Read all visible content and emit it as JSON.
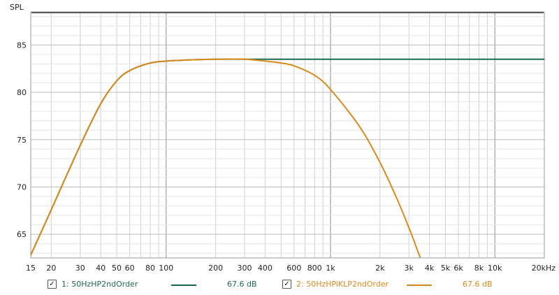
{
  "chart_data": {
    "type": "line",
    "ylabel": "SPL",
    "xscale": "log",
    "xlim": [
      15,
      20000
    ],
    "ylim": [
      62.5,
      88.5
    ],
    "x_ticks": [
      {
        "v": 15,
        "label": "15"
      },
      {
        "v": 20,
        "label": "20"
      },
      {
        "v": 30,
        "label": "30"
      },
      {
        "v": 40,
        "label": "40"
      },
      {
        "v": 50,
        "label": "50"
      },
      {
        "v": 60,
        "label": "60"
      },
      {
        "v": 80,
        "label": "80"
      },
      {
        "v": 100,
        "label": "100"
      },
      {
        "v": 200,
        "label": "200"
      },
      {
        "v": 300,
        "label": "300"
      },
      {
        "v": 400,
        "label": "400"
      },
      {
        "v": 600,
        "label": "600"
      },
      {
        "v": 800,
        "label": "800"
      },
      {
        "v": 1000,
        "label": "1k"
      },
      {
        "v": 2000,
        "label": "2k"
      },
      {
        "v": 3000,
        "label": "3k"
      },
      {
        "v": 4000,
        "label": "4k"
      },
      {
        "v": 5000,
        "label": "5k"
      },
      {
        "v": 6000,
        "label": "6k"
      },
      {
        "v": 8000,
        "label": "8k"
      },
      {
        "v": 10000,
        "label": "10k"
      },
      {
        "v": 20000,
        "label": "20kHz"
      }
    ],
    "y_ticks": [
      {
        "v": 65,
        "label": "65"
      },
      {
        "v": 70,
        "label": "70"
      },
      {
        "v": 75,
        "label": "75"
      },
      {
        "v": 80,
        "label": "80"
      },
      {
        "v": 85,
        "label": "85"
      }
    ],
    "grid": true,
    "series": [
      {
        "name": "1: 50HzHP2ndOrder",
        "color": "#1d6b4e",
        "legend_value": "67.6 dB",
        "points": [
          [
            15,
            62.8
          ],
          [
            20,
            67.6
          ],
          [
            30,
            74.4
          ],
          [
            40,
            78.8
          ],
          [
            50,
            81.2
          ],
          [
            60,
            82.3
          ],
          [
            80,
            83.1
          ],
          [
            100,
            83.3
          ],
          [
            150,
            83.45
          ],
          [
            200,
            83.5
          ],
          [
            300,
            83.5
          ],
          [
            400,
            83.5
          ],
          [
            500,
            83.5
          ],
          [
            1000,
            83.5
          ],
          [
            2000,
            83.5
          ],
          [
            5000,
            83.5
          ],
          [
            10000,
            83.5
          ],
          [
            20000,
            83.5
          ]
        ]
      },
      {
        "name": "2: 50HzHPiKLP2ndOrder",
        "color": "#d98a1c",
        "legend_value": "67.6 dB",
        "points": [
          [
            15,
            62.8
          ],
          [
            20,
            67.6
          ],
          [
            30,
            74.4
          ],
          [
            40,
            78.8
          ],
          [
            50,
            81.2
          ],
          [
            60,
            82.3
          ],
          [
            80,
            83.1
          ],
          [
            100,
            83.3
          ],
          [
            150,
            83.45
          ],
          [
            200,
            83.5
          ],
          [
            300,
            83.5
          ],
          [
            400,
            83.3
          ],
          [
            500,
            83.1
          ],
          [
            600,
            82.8
          ],
          [
            800,
            81.8
          ],
          [
            1000,
            80.3
          ],
          [
            1500,
            76.4
          ],
          [
            2000,
            72.6
          ],
          [
            2500,
            69.0
          ],
          [
            3000,
            65.7
          ],
          [
            3500,
            62.6
          ]
        ]
      }
    ]
  },
  "legend": [
    {
      "checked": true,
      "name": "1: 50HzHP2ndOrder",
      "value": "67.6 dB",
      "color": "#1d6b4e"
    },
    {
      "checked": true,
      "name": "2: 50HzHPiKLP2ndOrder",
      "value": "67.6 dB",
      "color": "#d98a1c"
    }
  ],
  "checkmark": "✓"
}
